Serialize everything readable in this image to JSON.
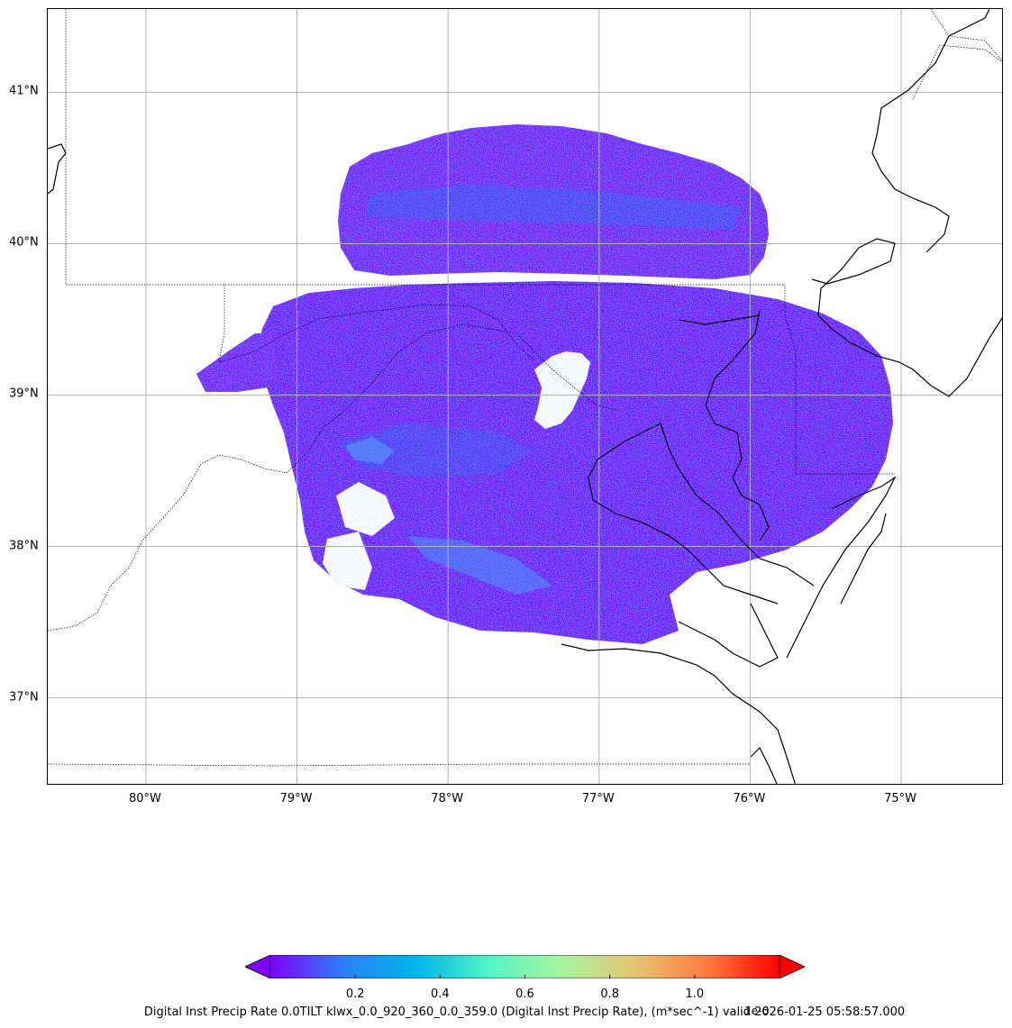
{
  "caption": "Digital Inst Precip Rate 0.0TILT klwx_0.0_920_360_0.0_359.0 (Digital Inst Precip Rate), (m*sec^-1) valid 2026-01-25 05:58:57.000",
  "map": {
    "lon_range": [
      -80.65,
      -74.32
    ],
    "lat_range": [
      36.42,
      41.55
    ],
    "lon_ticks": [
      {
        "value": -80,
        "label": "80°W"
      },
      {
        "value": -79,
        "label": "79°W"
      },
      {
        "value": -78,
        "label": "78°W"
      },
      {
        "value": -77,
        "label": "77°W"
      },
      {
        "value": -76,
        "label": "76°W"
      },
      {
        "value": -75,
        "label": "75°W"
      }
    ],
    "lat_ticks": [
      {
        "value": 41,
        "label": "41°N"
      },
      {
        "value": 40,
        "label": "40°N"
      },
      {
        "value": 39,
        "label": "39°N"
      },
      {
        "value": 38,
        "label": "38°N"
      },
      {
        "value": 37,
        "label": "37°N"
      }
    ],
    "gridlines": true,
    "radar_site": {
      "lon": -77.48,
      "lat": 38.98
    }
  },
  "colorbar": {
    "colormap": "rainbow",
    "colors": [
      "#8000ff",
      "#2c7ef7",
      "#00b5eb",
      "#52f4c7",
      "#a6f59c",
      "#e6c475",
      "#ff7c40",
      "#ff0000"
    ],
    "under_color": "#8000ff",
    "over_color": "#ff0000",
    "extend": "both",
    "range": [
      0.0,
      1.2
    ],
    "ticks": [
      {
        "value": 0.2,
        "label": "0.2"
      },
      {
        "value": 0.4,
        "label": "0.4"
      },
      {
        "value": 0.6,
        "label": "0.6"
      },
      {
        "value": 0.8,
        "label": "0.8"
      },
      {
        "value": 1.0,
        "label": "1.0"
      }
    ],
    "exponent_label": "1e-6"
  }
}
